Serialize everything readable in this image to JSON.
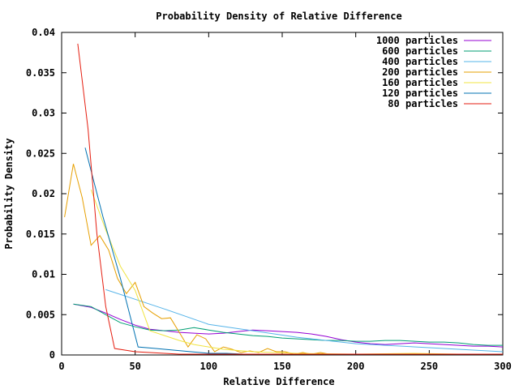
{
  "chart_data": {
    "type": "line",
    "title": "Probability Density of Relative Difference",
    "xlabel": "Relative Difference",
    "ylabel": "Probability Density",
    "xlim": [
      0,
      300
    ],
    "ylim": [
      0,
      0.04
    ],
    "xticks": [
      0,
      50,
      100,
      150,
      200,
      250,
      300
    ],
    "xtick_labels": [
      "0",
      "50",
      "100",
      "150",
      "200",
      "250",
      "300"
    ],
    "yticks": [
      0,
      0.005,
      0.01,
      0.015,
      0.02,
      0.025,
      0.03,
      0.035,
      0.04
    ],
    "ytick_labels": [
      "0",
      "0.005",
      "0.01",
      "0.015",
      "0.02",
      "0.025",
      "0.03",
      "0.035",
      "0.04"
    ],
    "grid": false,
    "legend_position": "top-right",
    "series": [
      {
        "name": "1000 particles",
        "color": "#9400d3",
        "x": [
          8,
          20,
          30,
          40,
          50,
          60,
          70,
          80,
          90,
          100,
          110,
          120,
          130,
          140,
          150,
          160,
          170,
          180,
          190,
          200,
          210,
          220,
          230,
          240,
          250,
          260,
          270,
          280,
          290,
          300
        ],
        "y": [
          0.0063,
          0.0059,
          0.0052,
          0.0044,
          0.0037,
          0.0032,
          0.003,
          0.0028,
          0.0027,
          0.0026,
          0.0027,
          0.0029,
          0.0031,
          0.003,
          0.0029,
          0.0028,
          0.0026,
          0.0023,
          0.0019,
          0.0016,
          0.0014,
          0.0013,
          0.0014,
          0.0015,
          0.0014,
          0.0013,
          0.0012,
          0.0011,
          0.0011,
          0.001
        ]
      },
      {
        "name": "600 particles",
        "color": "#009e73",
        "x": [
          8,
          20,
          30,
          40,
          50,
          60,
          70,
          80,
          90,
          100,
          110,
          120,
          130,
          140,
          150,
          160,
          170,
          180,
          190,
          200,
          210,
          220,
          230,
          240,
          250,
          260,
          270,
          280,
          290,
          300
        ],
        "y": [
          0.0063,
          0.006,
          0.005,
          0.004,
          0.0035,
          0.0031,
          0.003,
          0.0031,
          0.0034,
          0.0031,
          0.0028,
          0.0026,
          0.0024,
          0.0023,
          0.0021,
          0.002,
          0.0019,
          0.0018,
          0.0018,
          0.0017,
          0.0017,
          0.0018,
          0.0018,
          0.0017,
          0.0016,
          0.0016,
          0.0015,
          0.0013,
          0.0012,
          0.0012
        ]
      },
      {
        "name": "400 particles",
        "color": "#56b4e9",
        "x": [
          30,
          50,
          70,
          100,
          130,
          160,
          200,
          250,
          300
        ],
        "y": [
          0.0081,
          0.0069,
          0.0057,
          0.0038,
          0.003,
          0.0022,
          0.0014,
          0.0009,
          0.0004
        ]
      },
      {
        "name": "200 particles",
        "color": "#e69f00",
        "x": [
          2,
          8,
          14,
          20,
          26,
          32,
          38,
          44,
          50,
          56,
          62,
          68,
          74,
          80,
          86,
          92,
          98,
          104,
          110,
          116,
          122,
          128,
          134,
          140,
          146,
          152,
          158,
          164,
          170,
          176,
          182,
          188,
          194,
          200
        ],
        "y": [
          0.0171,
          0.0237,
          0.0195,
          0.0136,
          0.0148,
          0.013,
          0.0095,
          0.0076,
          0.009,
          0.006,
          0.0052,
          0.0045,
          0.0046,
          0.0028,
          0.001,
          0.0025,
          0.002,
          0.0004,
          0.001,
          0.0007,
          0.0003,
          0.0005,
          0.0003,
          0.0008,
          0.0004,
          0.0004,
          0.0001,
          0.0003,
          0.0001,
          0.0003,
          0.0001,
          0.0001,
          0.0001,
          0.0001
        ]
      },
      {
        "name": "160 particles",
        "color": "#f0e442",
        "x": [
          20,
          30,
          40,
          50,
          60,
          70,
          80,
          90,
          100,
          110,
          130,
          160,
          200,
          240,
          270
        ],
        "y": [
          0.0205,
          0.0155,
          0.011,
          0.008,
          0.003,
          0.0024,
          0.0018,
          0.0013,
          0.001,
          0.0007,
          0.0004,
          0.0002,
          0.0001,
          0.0002,
          0.0001
        ]
      },
      {
        "name": "120 particles",
        "color": "#0072b2",
        "x": [
          16,
          28,
          40,
          52,
          64,
          76,
          88,
          100,
          112,
          124,
          136,
          148,
          160,
          200,
          240,
          280
        ],
        "y": [
          0.0257,
          0.0172,
          0.0095,
          0.001,
          0.0008,
          0.0006,
          0.0004,
          0.0002,
          0.0002,
          0.0001,
          0.0001,
          0.0001,
          0.0001,
          0.0001,
          0.0001,
          0.0001
        ]
      },
      {
        "name": "80 particles",
        "color": "#e51e10",
        "x": [
          11,
          18,
          24,
          30,
          36,
          50,
          60,
          70,
          80,
          90,
          100,
          150,
          200,
          250,
          300
        ],
        "y": [
          0.0386,
          0.028,
          0.015,
          0.006,
          0.0008,
          0.0004,
          0.0003,
          0.0002,
          0.0001,
          0.0001,
          0.0001,
          0.0001,
          0.0001,
          0.0001,
          0.0001
        ]
      }
    ]
  }
}
